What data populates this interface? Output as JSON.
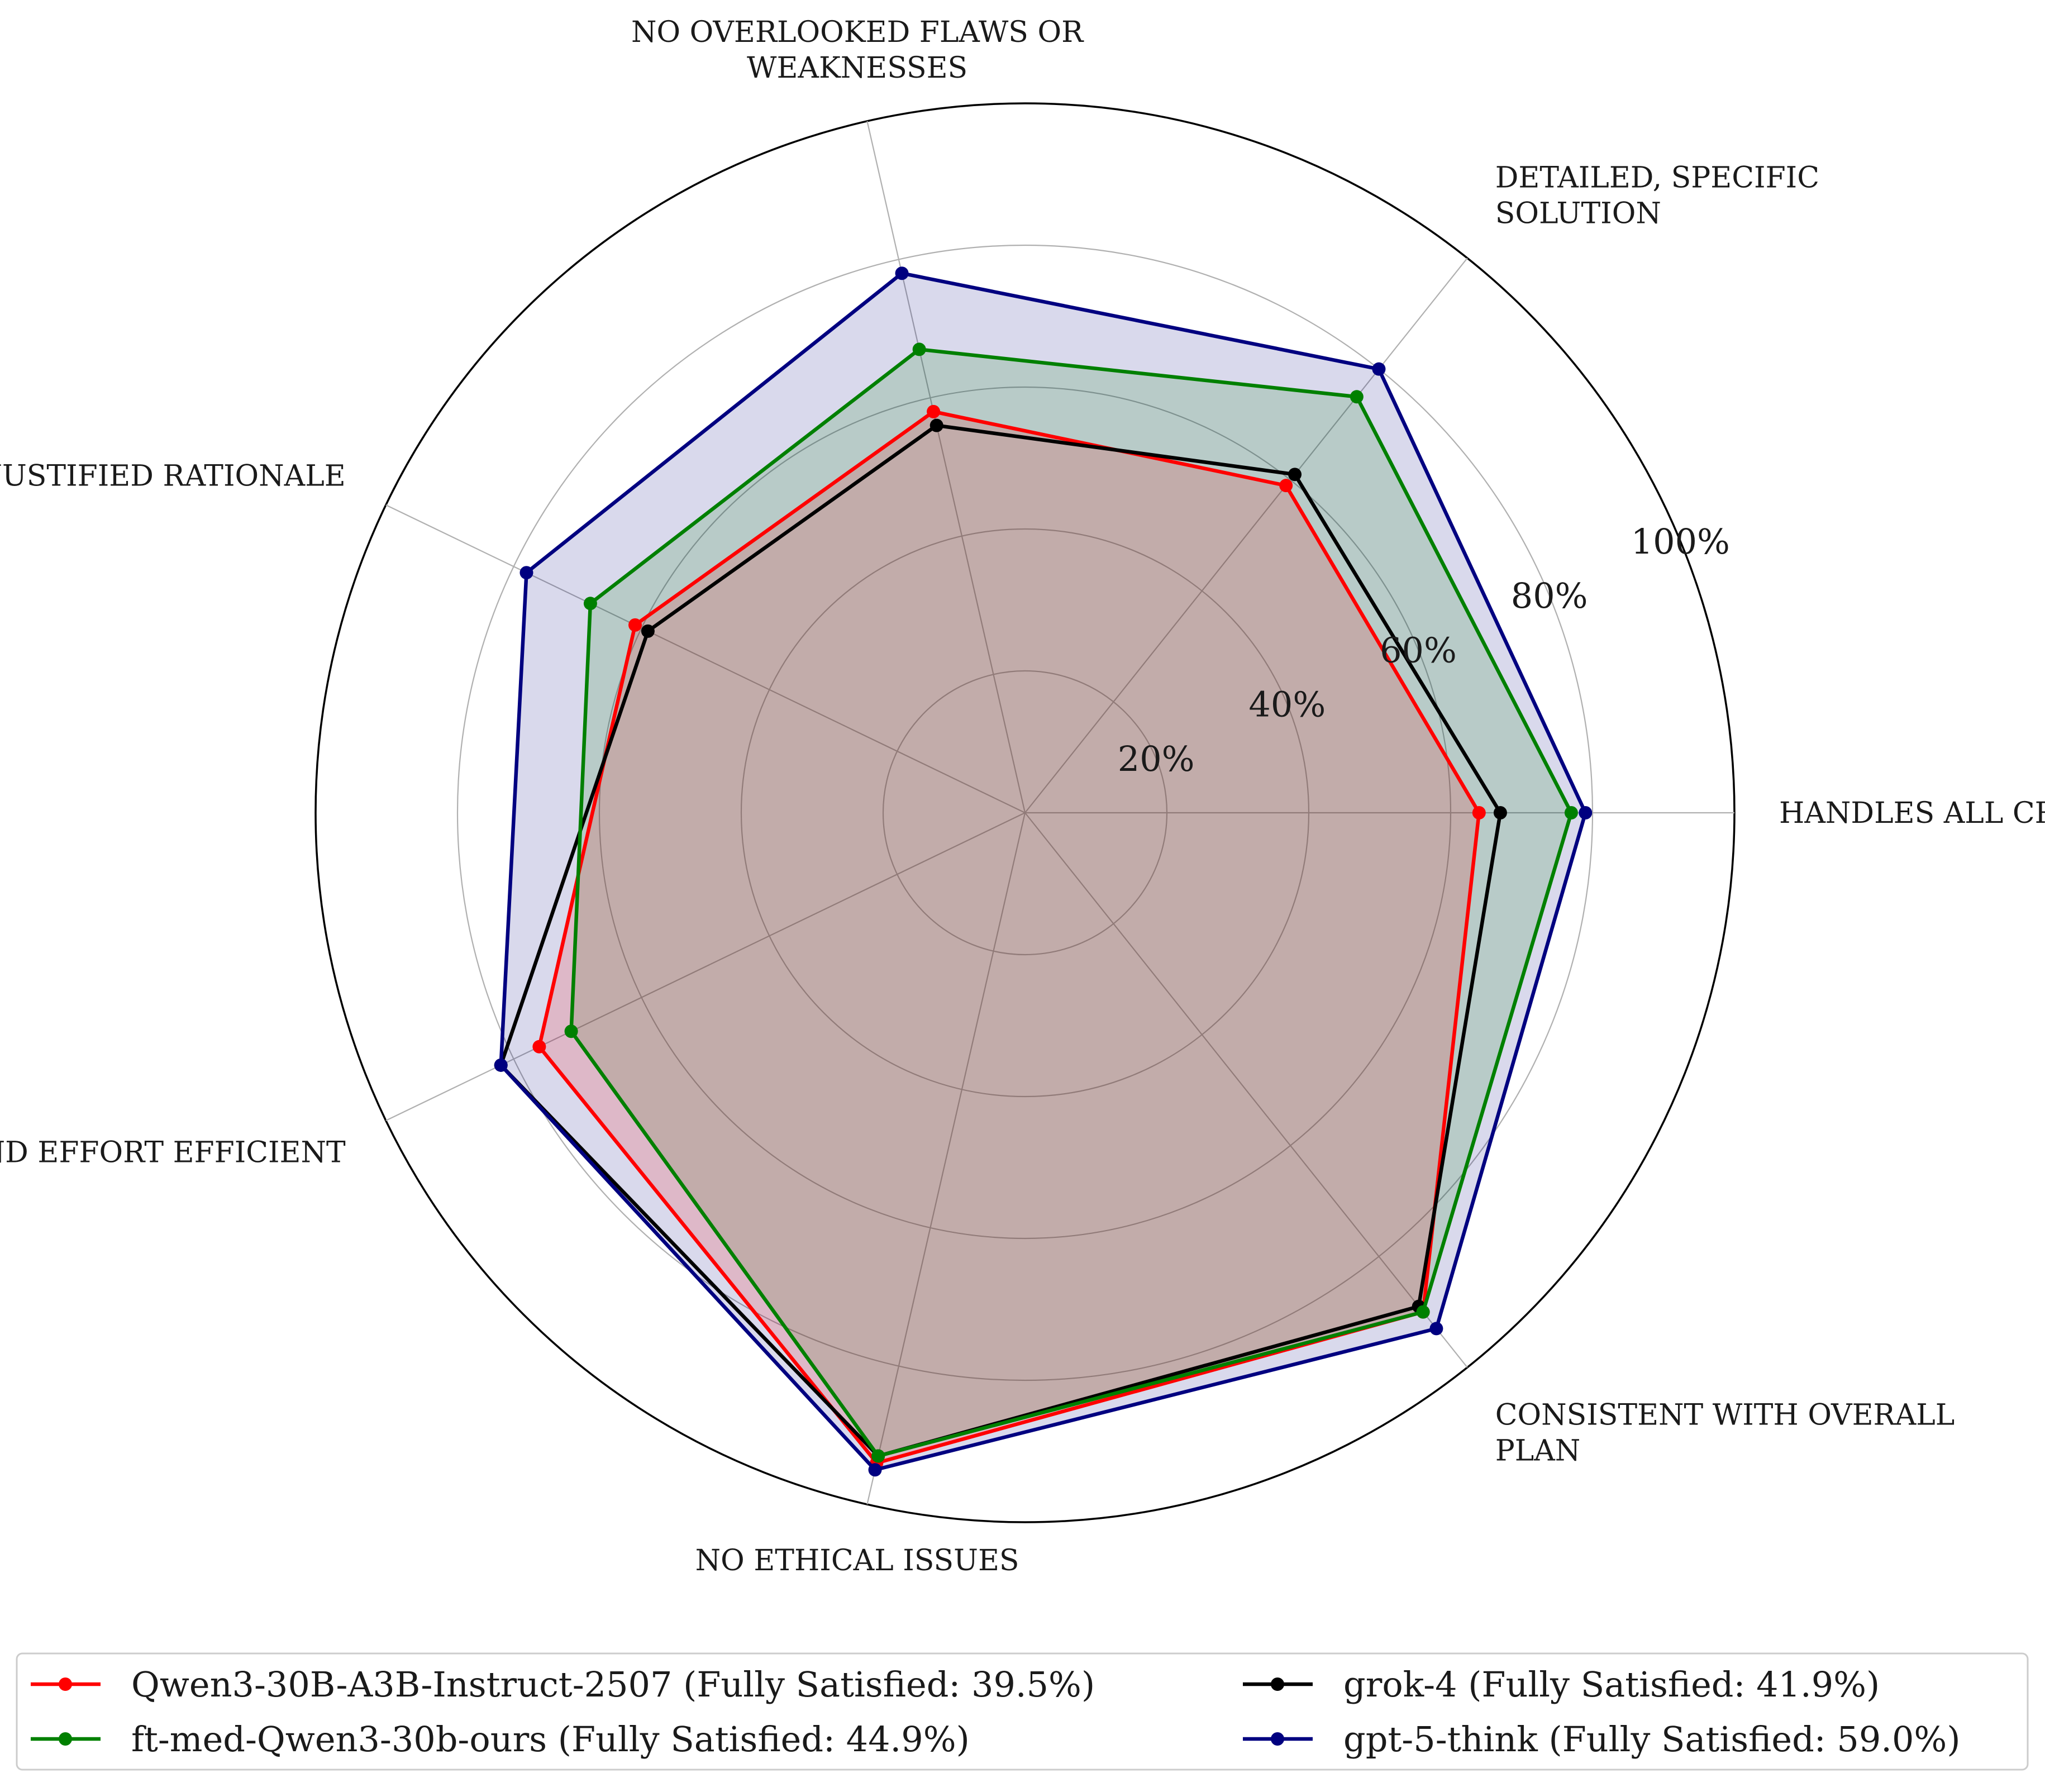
{
  "chart_data": {
    "type": "radar",
    "axes": [
      "HANDLES ALL CRITERIA",
      "DETAILED, SPECIFIC\nSOLUTION",
      "NO OVERLOOKED FLAWS OR\nWEAKNESSES",
      "WELL JUSTIFIED RATIONALE",
      "COST AND EFFORT EFFICIENT",
      "NO ETHICAL ISSUES",
      "CONSISTENT WITH OVERALL\nPLAN"
    ],
    "r_ticks": [
      20,
      40,
      60,
      80,
      100
    ],
    "r_tick_labels": [
      "20%",
      "40%",
      "60%",
      "80%",
      "100%"
    ],
    "rlim": [
      0,
      100
    ],
    "grid": true,
    "legend_position": "bottom",
    "legend_columns": 2,
    "series": [
      {
        "name": "Qwen3-30B-A3B-Instruct-2507 (Fully Satisfied: 39.5%)",
        "color": "#ff0000",
        "values": [
          64,
          59,
          58,
          61,
          76,
          94,
          90
        ]
      },
      {
        "name": "grok-4 (Fully Satisfied: 41.9%)",
        "color": "#000000",
        "values": [
          67,
          61,
          56,
          59,
          82,
          93,
          89
        ]
      },
      {
        "name": "ft-med-Qwen3-30b-ours (Fully Satisfied: 44.9%)",
        "color": "#008000",
        "values": [
          77,
          75,
          67,
          68,
          71,
          93,
          90
        ]
      },
      {
        "name": "gpt-5-think (Fully Satisfied: 59.0%)",
        "color": "#000080",
        "values": [
          79,
          80,
          78,
          78,
          82,
          95,
          93
        ]
      }
    ],
    "legend_order": [
      0,
      1,
      2,
      3
    ],
    "fill_series": [
      3,
      2,
      0
    ]
  }
}
